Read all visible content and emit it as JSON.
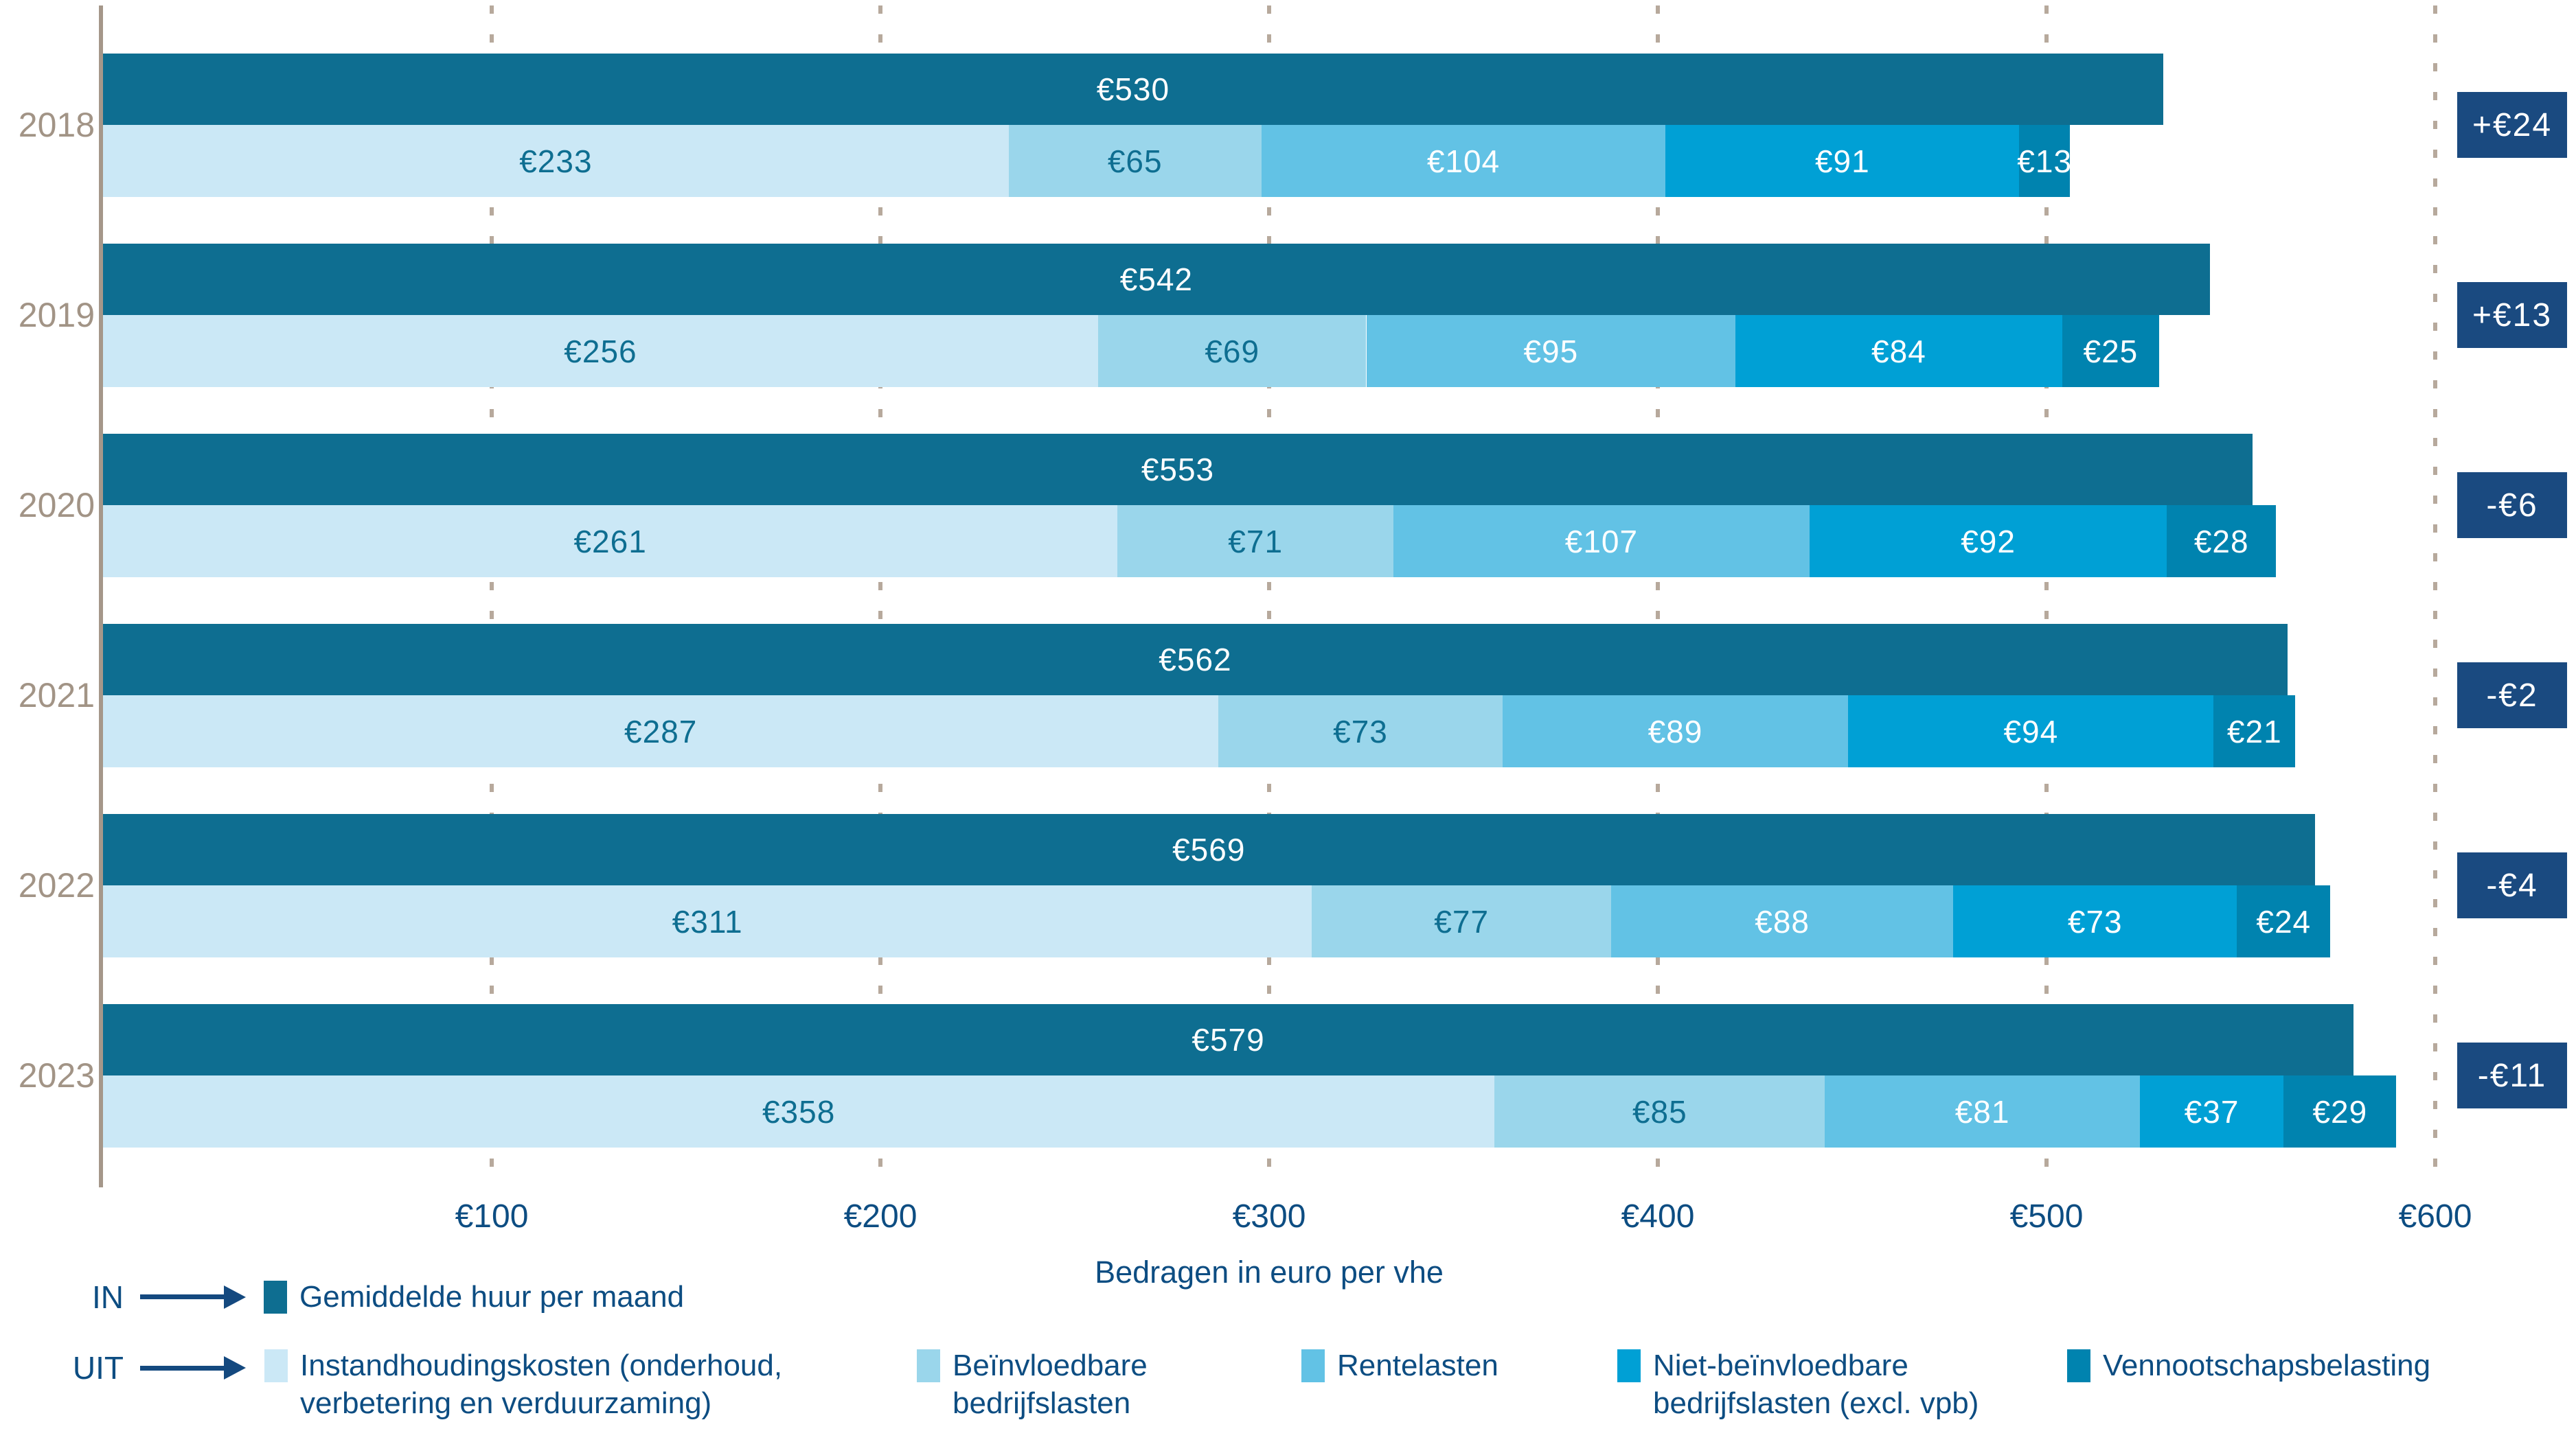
{
  "chart_data": {
    "type": "bar",
    "orientation": "horizontal-stacked",
    "title": "",
    "xlabel": "Bedragen in euro per vhe",
    "x_ticks": [
      "€100",
      "€200",
      "€300",
      "€400",
      "€500",
      "€600"
    ],
    "x_tick_values": [
      100,
      200,
      300,
      400,
      500,
      600
    ],
    "xlim": [
      0,
      600
    ],
    "grid": "dotted-vertical",
    "currency_prefix": "€",
    "categories": [
      "2018",
      "2019",
      "2020",
      "2021",
      "2022",
      "2023"
    ],
    "in_series": {
      "name": "Gemiddelde huur per maand",
      "values": [
        530,
        542,
        553,
        562,
        569,
        579
      ]
    },
    "uit_series": [
      {
        "name": "Instandhoudingskosten (onderhoud, verbetering en verduurzaming)",
        "values": [
          233,
          256,
          261,
          287,
          311,
          358
        ]
      },
      {
        "name": "Beïnvloedbare bedrijfslasten",
        "values": [
          65,
          69,
          71,
          73,
          77,
          85
        ]
      },
      {
        "name": "Rentelasten",
        "values": [
          104,
          95,
          107,
          89,
          88,
          81
        ]
      },
      {
        "name": "Niet-beïnvloedbare bedrijfslasten (excl. vpb)",
        "values": [
          91,
          84,
          92,
          94,
          73,
          37
        ]
      },
      {
        "name": "Vennootschapsbelasting",
        "values": [
          13,
          25,
          28,
          21,
          24,
          29
        ]
      }
    ],
    "badges": [
      "+€24",
      "+€13",
      "-€6",
      "-€2",
      "-€4",
      "-€11"
    ]
  },
  "legend": {
    "in_label": "IN",
    "uit_label": "UIT",
    "in_item": "Gemiddelde huur per maand",
    "uit_items": [
      {
        "label": "Instandhoudingskosten (onderhoud,\nverbetering en verduurzaming)"
      },
      {
        "label": "Beïnvloedbare\nbedrijfslasten"
      },
      {
        "label": "Rentelasten"
      },
      {
        "label": "Niet-beïnvloedbare\nbedrijfslasten (excl. vpb)"
      },
      {
        "label": "Vennootschapsbelasting"
      }
    ]
  },
  "colors": {
    "in_bar": "#0e6e91",
    "uit_segments": [
      "#cbe8f6",
      "#9ad6eb",
      "#62c2e5",
      "#00a0d5",
      "#0083af"
    ],
    "badge_bg": "#1a4a80",
    "text_navy": "#0d4d82",
    "label_on_light": "#0e6e91",
    "label_on_dark": "#ffffff",
    "axis_line": "#a5978a",
    "grid_dot": "#b7a99c",
    "year_label": "#a29486"
  }
}
